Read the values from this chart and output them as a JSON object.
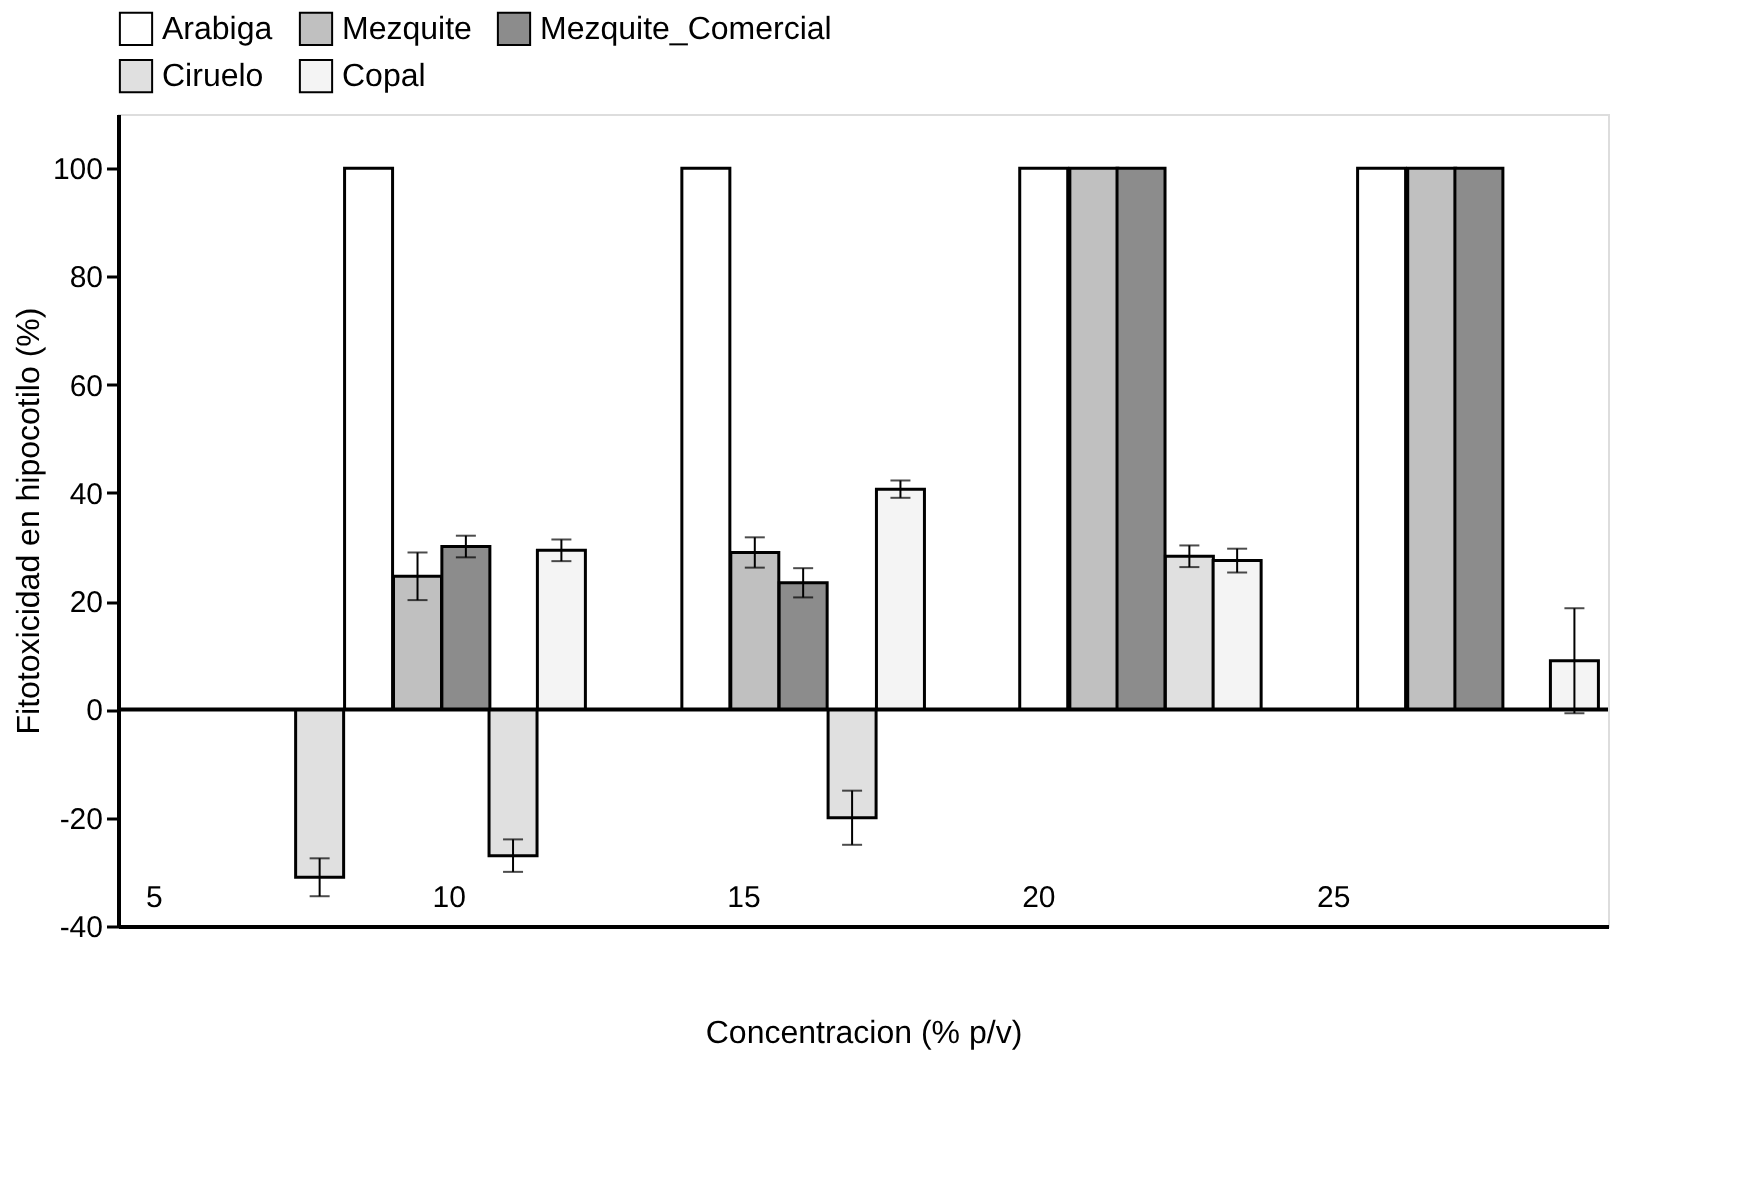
{
  "chart_data": {
    "type": "bar",
    "xlabel": "Concentracion (% p/v)",
    "ylabel": "Fitotoxicidad en hipocotilo (%)",
    "xlim": [
      4.57,
      29.5
    ],
    "xticks": [
      5,
      10,
      15,
      20,
      25
    ],
    "ylim": [
      -40,
      110
    ],
    "yticks": [
      -40,
      -20,
      0,
      20,
      40,
      60,
      80,
      100
    ],
    "series": [
      {
        "name": "Arabiga",
        "color": "#ffffff",
        "x": [
          8.65,
          14.37,
          20.1,
          25.83
        ],
        "values": [
          100,
          100,
          100,
          100
        ],
        "errors": [
          null,
          null,
          null,
          null
        ]
      },
      {
        "name": "Mezquite",
        "color": "#c0c0c0",
        "x": [
          9.48,
          15.2,
          20.95,
          26.68
        ],
        "values": [
          24.6,
          29,
          100,
          100
        ],
        "errors": [
          4.4,
          2.8,
          null,
          null
        ]
      },
      {
        "name": "Mezquite_Comercial",
        "color": "#8c8c8c",
        "x": [
          10.3,
          16.02,
          21.75,
          27.48
        ],
        "values": [
          30.1,
          23.4,
          100,
          100
        ],
        "errors": [
          2,
          2.7,
          null,
          null
        ]
      },
      {
        "name": "Ciruelo",
        "color": "#e0e0e0",
        "x": [
          7.82,
          11.1,
          16.85,
          22.57
        ],
        "values": [
          -31,
          -27,
          -20,
          28.3
        ],
        "errors": [
          3.5,
          3,
          5,
          2
        ]
      },
      {
        "name": "Copal",
        "color": "#f4f4f4",
        "x": [
          11.92,
          17.67,
          23.38,
          29.1
        ],
        "values": [
          29.4,
          40.7,
          27.5,
          9
        ],
        "errors": [
          2,
          1.6,
          2.2,
          9.7
        ]
      }
    ],
    "ref_lines": [
      {
        "axis": "y",
        "value": 0,
        "label": null
      }
    ],
    "legend": "top",
    "grid": false
  }
}
